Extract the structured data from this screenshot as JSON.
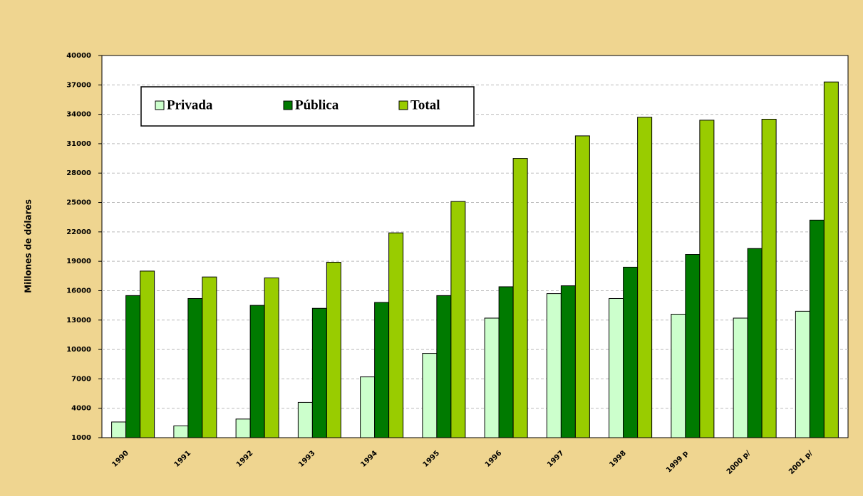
{
  "chart_data": {
    "type": "bar",
    "y_label": "Millones de dólares",
    "categories": [
      "1990",
      "1991",
      "1992",
      "1993",
      "1994",
      "1995",
      "1996",
      "1997",
      "1998",
      "1999 p",
      "2000 p/",
      "2001 p/"
    ],
    "series": [
      {
        "name": "Privada",
        "color": "#ccffcc",
        "values": [
          2600,
          2200,
          2900,
          4600,
          7200,
          9600,
          13200,
          15700,
          15200,
          13600,
          13200,
          13900
        ]
      },
      {
        "name": "Pública",
        "color": "#007a00",
        "values": [
          15500,
          15200,
          14500,
          14200,
          14800,
          15500,
          16400,
          16500,
          18400,
          19700,
          20300,
          23200
        ]
      },
      {
        "name": "Total",
        "color": "#99cc00",
        "values": [
          18000,
          17400,
          17300,
          18900,
          21900,
          25100,
          29500,
          31800,
          33700,
          33400,
          33500,
          37300
        ]
      }
    ],
    "ylim": [
      1000,
      40000
    ],
    "yticks": [
      1000,
      4000,
      7000,
      10000,
      13000,
      16000,
      19000,
      22000,
      25000,
      28000,
      31000,
      34000,
      37000,
      40000
    ],
    "grid": true
  }
}
